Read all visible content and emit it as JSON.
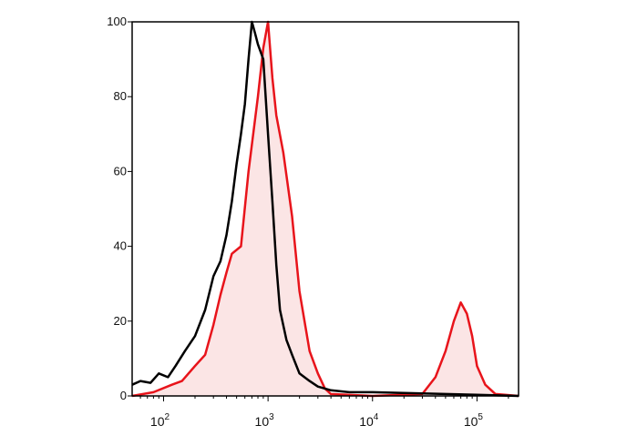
{
  "chart_data": {
    "type": "area",
    "x_scale": "log",
    "xlim": [
      50,
      250000
    ],
    "ylim": [
      0,
      100
    ],
    "x_ticks": [
      {
        "value": 100,
        "base": "10",
        "exp": "2"
      },
      {
        "value": 1000,
        "base": "10",
        "exp": "3"
      },
      {
        "value": 10000,
        "base": "10",
        "exp": "4"
      },
      {
        "value": 100000,
        "base": "10",
        "exp": "5"
      }
    ],
    "y_ticks": [
      {
        "value": 0,
        "label": "0"
      },
      {
        "value": 20,
        "label": "20"
      },
      {
        "value": 40,
        "label": "40"
      },
      {
        "value": 60,
        "label": "60"
      },
      {
        "value": 80,
        "label": "80"
      },
      {
        "value": 100,
        "label": "100"
      }
    ],
    "grid": false,
    "series": [
      {
        "color": "#000000",
        "fill": "none",
        "points": [
          [
            50,
            3
          ],
          [
            60,
            4
          ],
          [
            75,
            3.5
          ],
          [
            90,
            6
          ],
          [
            110,
            5
          ],
          [
            130,
            8
          ],
          [
            160,
            12
          ],
          [
            200,
            16
          ],
          [
            250,
            23
          ],
          [
            300,
            32
          ],
          [
            350,
            36
          ],
          [
            400,
            43
          ],
          [
            450,
            52
          ],
          [
            500,
            62
          ],
          [
            550,
            70
          ],
          [
            600,
            78
          ],
          [
            650,
            90
          ],
          [
            700,
            100
          ],
          [
            750,
            97
          ],
          [
            800,
            94
          ],
          [
            900,
            90
          ],
          [
            1000,
            70
          ],
          [
            1100,
            52
          ],
          [
            1200,
            35
          ],
          [
            1300,
            23
          ],
          [
            1500,
            15
          ],
          [
            1700,
            11
          ],
          [
            2000,
            6
          ],
          [
            2500,
            4
          ],
          [
            3000,
            2.5
          ],
          [
            4000,
            1.5
          ],
          [
            6000,
            1
          ],
          [
            10000,
            1
          ],
          [
            20000,
            0.8
          ],
          [
            50000,
            0.5
          ],
          [
            100000,
            0.3
          ],
          [
            250000,
            0
          ]
        ]
      },
      {
        "color": "#e8141b",
        "fill": "#fbe5e5",
        "points": [
          [
            50,
            0
          ],
          [
            80,
            1
          ],
          [
            120,
            3
          ],
          [
            150,
            4
          ],
          [
            200,
            8
          ],
          [
            250,
            11
          ],
          [
            300,
            19
          ],
          [
            350,
            27
          ],
          [
            400,
            33
          ],
          [
            450,
            38
          ],
          [
            550,
            40
          ],
          [
            650,
            60
          ],
          [
            800,
            80
          ],
          [
            900,
            93
          ],
          [
            1000,
            100
          ],
          [
            1100,
            85
          ],
          [
            1200,
            75
          ],
          [
            1400,
            65
          ],
          [
            1700,
            48
          ],
          [
            2000,
            28
          ],
          [
            2500,
            12
          ],
          [
            3000,
            6
          ],
          [
            3500,
            2
          ],
          [
            4000,
            0.5
          ],
          [
            10000,
            0
          ],
          [
            30000,
            0.5
          ],
          [
            40000,
            5
          ],
          [
            50000,
            12
          ],
          [
            60000,
            20
          ],
          [
            70000,
            25
          ],
          [
            80000,
            22
          ],
          [
            90000,
            16
          ],
          [
            100000,
            8
          ],
          [
            120000,
            3
          ],
          [
            150000,
            0.5
          ],
          [
            250000,
            0
          ]
        ]
      }
    ]
  }
}
